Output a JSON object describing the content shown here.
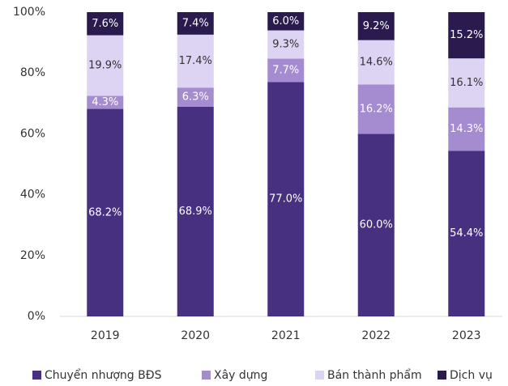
{
  "chart_data": {
    "type": "stacked_bar",
    "categories": [
      "2019",
      "2020",
      "2021",
      "2022",
      "2023"
    ],
    "series": [
      {
        "name": "Chuyển nhượng BĐS",
        "color": "#46307f",
        "label_color": "#ffffff",
        "values": [
          68.2,
          68.9,
          77.0,
          60.0,
          54.4
        ],
        "value_labels": [
          "68.2%",
          "68.9%",
          "77.0%",
          "60.0%",
          "54.4%"
        ]
      },
      {
        "name": "Xây dựng",
        "color": "#a58bd0",
        "label_color": "#ffffff",
        "values": [
          4.3,
          6.3,
          7.7,
          16.2,
          14.3
        ],
        "value_labels": [
          "4.3%",
          "6.3%",
          "7.7%",
          "16.2%",
          "14.3%"
        ]
      },
      {
        "name": "Bán thành phẩm",
        "color": "#ddd3f3",
        "label_color": "#333333",
        "values": [
          19.9,
          17.4,
          9.3,
          14.6,
          16.1
        ],
        "value_labels": [
          "19.9%",
          "17.4%",
          "9.3%",
          "14.6%",
          "16.1%"
        ]
      },
      {
        "name": "Dịch vụ",
        "color": "#2a1a4e",
        "label_color": "#ffffff",
        "values": [
          7.6,
          7.4,
          6.0,
          9.2,
          15.2
        ],
        "value_labels": [
          "7.6%",
          "7.4%",
          "6.0%",
          "9.2%",
          "15.2%"
        ]
      }
    ],
    "ylim": [
      0,
      100
    ],
    "yticks": [
      {
        "value": 0,
        "label": "0%"
      },
      {
        "value": 20,
        "label": "20%"
      },
      {
        "value": 40,
        "label": "40%"
      },
      {
        "value": 60,
        "label": "60%"
      },
      {
        "value": 80,
        "label": "80%"
      },
      {
        "value": 100,
        "label": "100%"
      }
    ],
    "legend": "bottom"
  }
}
